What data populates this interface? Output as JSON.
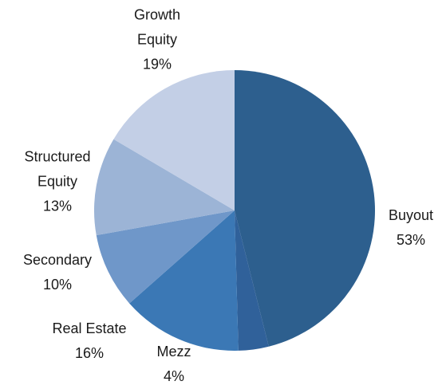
{
  "chart_data": {
    "type": "pie",
    "categories": [
      "Buyout",
      "Mezz",
      "Real Estate",
      "Secondary",
      "Structured Equity",
      "Growth Equity"
    ],
    "values": [
      53,
      4,
      16,
      10,
      13,
      19
    ],
    "value_labels": [
      "53%",
      "4%",
      "16%",
      "10%",
      "13%",
      "19%"
    ],
    "colors": [
      "#2d5f8e",
      "#30619a",
      "#3b78b5",
      "#6f97c9",
      "#9cb4d6",
      "#c3cfe6"
    ]
  }
}
